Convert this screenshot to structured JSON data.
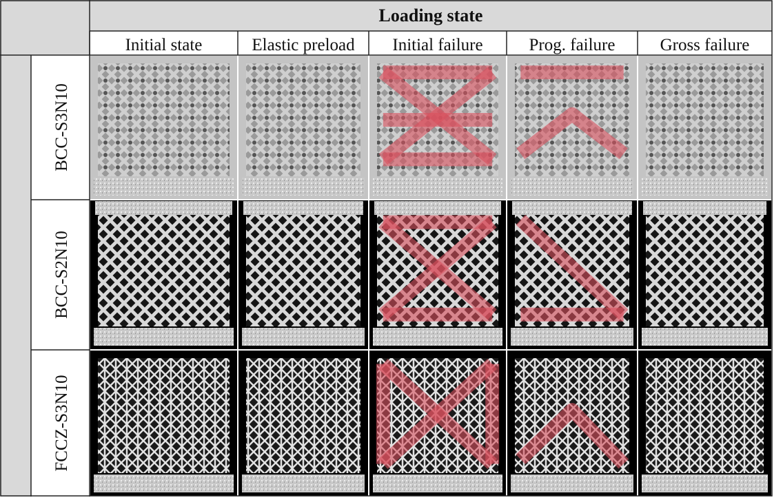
{
  "header": {
    "title": "Loading state",
    "columns": [
      "Initial state",
      "Elastic preload",
      "Initial failure",
      "Prog. failure",
      "Gross failure"
    ]
  },
  "rows": [
    {
      "label": "BCC-S3N10"
    },
    {
      "label": "BCC-S2N10"
    },
    {
      "label": "FCCZ-S3N10"
    }
  ]
}
